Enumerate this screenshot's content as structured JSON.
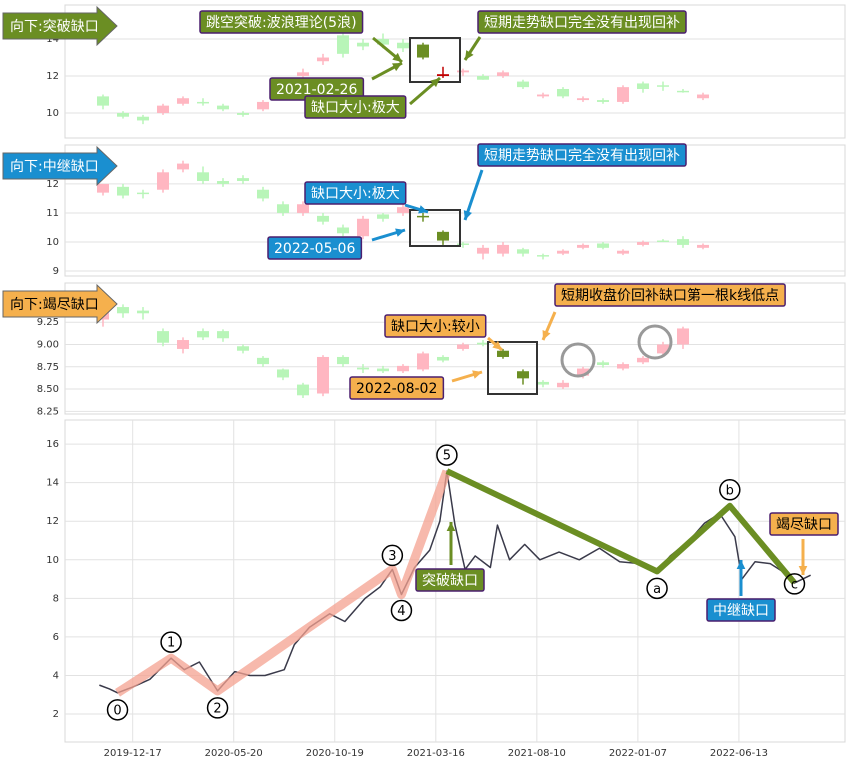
{
  "chart_data": [
    {
      "type": "candlestick",
      "label": "向下:突破缺口",
      "color": "#6b8e23",
      "ylim": [
        8.65,
        15.84
      ],
      "yticks": [
        10,
        12,
        14
      ],
      "grid": true,
      "open": [
        10.9,
        10.0,
        9.8,
        10.0,
        10.5,
        10.6,
        10.4,
        10.0,
        10.2,
        11.0,
        12.0,
        12.8,
        14.2,
        13.8,
        14.0,
        13.8,
        13.7,
        12.1,
        12.2,
        12.0,
        12.0,
        11.7,
        10.9,
        11.3,
        10.7,
        10.7,
        10.6,
        11.6,
        11.5,
        11.2,
        10.8
      ],
      "high": [
        11.0,
        10.1,
        9.9,
        10.5,
        10.9,
        10.8,
        10.5,
        10.1,
        10.7,
        11.2,
        12.4,
        13.2,
        14.5,
        14.0,
        14.3,
        14.0,
        13.8,
        12.5,
        12.4,
        12.1,
        12.3,
        11.8,
        11.1,
        11.4,
        10.9,
        10.8,
        11.5,
        11.7,
        11.7,
        11.3,
        11.1
      ],
      "low": [
        10.2,
        9.7,
        9.4,
        9.9,
        10.4,
        10.4,
        10.1,
        9.8,
        10.1,
        10.8,
        11.9,
        12.6,
        13.0,
        13.4,
        13.5,
        13.3,
        12.9,
        11.9,
        12.0,
        11.8,
        11.9,
        11.3,
        10.8,
        10.8,
        10.6,
        10.5,
        10.5,
        11.1,
        11.2,
        11.1,
        10.7
      ],
      "close": [
        10.4,
        9.8,
        9.6,
        10.4,
        10.8,
        10.6,
        10.2,
        9.9,
        10.6,
        11.1,
        12.2,
        13.0,
        13.2,
        13.6,
        13.7,
        13.5,
        13.0,
        12.0,
        12.3,
        11.8,
        12.2,
        11.4,
        11.0,
        10.9,
        10.8,
        10.6,
        11.4,
        11.3,
        11.5,
        11.2,
        11.0
      ],
      "colors": [
        "#b8f5b8",
        "#b8f5b8",
        "#b8f5b8",
        "#ffb6c1",
        "#ffb6c1",
        "#b8f5b8",
        "#b8f5b8",
        "#b8f5b8",
        "#ffb6c1",
        "#ffb6c1",
        "#ffb6c1",
        "#ffb6c1",
        "#b8f5b8",
        "#b8f5b8",
        "#b8f5b8",
        "#b8f5b8",
        "#6b8e23",
        "#c00000",
        "#ffb6c1",
        "#b8f5b8",
        "#ffb6c1",
        "#b8f5b8",
        "#ffb6c1",
        "#b8f5b8",
        "#ffb6c1",
        "#b8f5b8",
        "#ffb6c1",
        "#b8f5b8",
        "#b8f5b8",
        "#b8f5b8",
        "#ffb6c1"
      ],
      "annotations": [
        "跳空突破:波浪理论(5浪)",
        "短期走势缺口完全没有出现回补",
        "2021-02-26",
        "缺口大小:极大"
      ]
    },
    {
      "type": "candlestick",
      "label": "向下:中继缺口",
      "color": "#1a8fd0",
      "ylim": [
        8.83,
        13.34
      ],
      "yticks": [
        9,
        10,
        11,
        12
      ],
      "grid": true,
      "open": [
        11.7,
        11.9,
        11.7,
        11.8,
        12.5,
        12.4,
        12.1,
        12.2,
        11.8,
        11.3,
        11.0,
        10.9,
        10.5,
        10.2,
        10.95,
        11.0,
        10.9,
        10.35,
        9.95,
        9.6,
        9.6,
        9.75,
        9.55,
        9.6,
        9.8,
        9.95,
        9.6,
        9.9,
        10.05,
        10.1,
        9.8
      ],
      "high": [
        12.0,
        12.0,
        11.8,
        12.5,
        12.8,
        12.6,
        12.2,
        12.3,
        11.9,
        11.4,
        11.4,
        11.0,
        10.6,
        10.9,
        11.0,
        11.3,
        11.0,
        10.4,
        10.0,
        9.9,
        10.0,
        9.8,
        9.6,
        9.75,
        9.95,
        10.0,
        9.75,
        10.05,
        10.1,
        10.2,
        9.95
      ],
      "low": [
        11.6,
        11.5,
        11.5,
        11.7,
        12.4,
        12.0,
        11.9,
        12.0,
        11.4,
        10.9,
        10.9,
        10.6,
        10.2,
        10.1,
        10.7,
        10.9,
        10.7,
        9.9,
        9.8,
        9.4,
        9.5,
        9.5,
        9.4,
        9.55,
        9.75,
        9.75,
        9.55,
        9.85,
        10.0,
        9.8,
        9.75
      ],
      "close": [
        12.0,
        11.6,
        11.65,
        12.4,
        12.7,
        12.1,
        12.0,
        12.1,
        11.5,
        11.0,
        11.3,
        10.7,
        10.3,
        10.8,
        10.8,
        11.2,
        10.85,
        10.05,
        9.9,
        9.8,
        9.9,
        9.6,
        9.5,
        9.7,
        9.9,
        9.8,
        9.7,
        10.0,
        10.02,
        9.9,
        9.9
      ],
      "colors": [
        "#ffb6c1",
        "#b8f5b8",
        "#b8f5b8",
        "#ffb6c1",
        "#ffb6c1",
        "#b8f5b8",
        "#b8f5b8",
        "#b8f5b8",
        "#b8f5b8",
        "#b8f5b8",
        "#ffb6c1",
        "#b8f5b8",
        "#b8f5b8",
        "#ffb6c1",
        "#b8f5b8",
        "#ffb6c1",
        "#6b8e23",
        "#6b8e23",
        "#b8f5b8",
        "#ffb6c1",
        "#ffb6c1",
        "#b8f5b8",
        "#b8f5b8",
        "#ffb6c1",
        "#ffb6c1",
        "#b8f5b8",
        "#ffb6c1",
        "#ffb6c1",
        "#b8f5b8",
        "#b8f5b8",
        "#ffb6c1"
      ],
      "annotations": [
        "短期走势缺口完全没有出现回补",
        "缺口大小:极大",
        "2022-05-06"
      ]
    },
    {
      "type": "candlestick",
      "label": "向下:竭尽缺口",
      "color": "#f5b04d",
      "ylim": [
        8.22,
        9.69
      ],
      "yticks": [
        {
          "value": 8.25,
          "label": "8.25"
        },
        {
          "value": 8.5,
          "label": "8.50"
        },
        {
          "value": 8.75,
          "label": "8.75"
        },
        {
          "value": 9,
          "label": "9.00"
        },
        {
          "value": 9.25,
          "label": "9.25"
        }
      ],
      "grid": true,
      "open": [
        9.28,
        9.42,
        9.38,
        9.15,
        8.95,
        9.15,
        9.15,
        8.98,
        8.85,
        8.72,
        8.55,
        8.45,
        8.86,
        8.74,
        8.73,
        8.7,
        8.72,
        8.86,
        8.95,
        9.02,
        8.93,
        8.7,
        8.58,
        8.52,
        8.65,
        8.8,
        8.73,
        8.8,
        8.9,
        9.0
      ],
      "high": [
        9.42,
        9.45,
        9.42,
        9.18,
        9.08,
        9.18,
        9.17,
        9.0,
        8.87,
        8.73,
        8.57,
        8.88,
        8.88,
        8.78,
        8.76,
        8.78,
        8.92,
        8.88,
        9.02,
        9.05,
        8.95,
        8.72,
        8.6,
        8.6,
        8.75,
        8.82,
        8.8,
        8.87,
        9.03,
        9.2
      ],
      "low": [
        9.2,
        9.3,
        9.28,
        8.98,
        8.9,
        9.05,
        9.03,
        8.9,
        8.75,
        8.6,
        8.4,
        8.42,
        8.75,
        8.68,
        8.68,
        8.68,
        8.7,
        8.8,
        8.93,
        8.98,
        8.84,
        8.55,
        8.52,
        8.5,
        8.62,
        8.74,
        8.71,
        8.78,
        8.88,
        8.95
      ],
      "close": [
        9.38,
        9.35,
        9.35,
        9.02,
        9.05,
        9.08,
        9.07,
        8.93,
        8.78,
        8.63,
        8.43,
        8.86,
        8.78,
        8.72,
        8.7,
        8.76,
        8.9,
        8.82,
        9.0,
        9.0,
        8.86,
        8.62,
        8.55,
        8.57,
        8.73,
        8.77,
        8.78,
        8.85,
        9.0,
        9.18
      ],
      "colors": [
        "#ffb6c1",
        "#b8f5b8",
        "#b8f5b8",
        "#b8f5b8",
        "#ffb6c1",
        "#b8f5b8",
        "#b8f5b8",
        "#b8f5b8",
        "#b8f5b8",
        "#b8f5b8",
        "#b8f5b8",
        "#ffb6c1",
        "#b8f5b8",
        "#b8f5b8",
        "#b8f5b8",
        "#ffb6c1",
        "#ffb6c1",
        "#b8f5b8",
        "#ffb6c1",
        "#b8f5b8",
        "#6b8e23",
        "#6b8e23",
        "#b8f5b8",
        "#ffb6c1",
        "#ffb6c1",
        "#b8f5b8",
        "#ffb6c1",
        "#ffb6c1",
        "#ffb6c1",
        "#ffb6c1"
      ],
      "annotations": [
        "短期收盘价回补缺口第一根k线低点",
        "缺口大小:较小",
        "2022-08-02"
      ]
    },
    {
      "type": "line",
      "xlim": [
        -67,
        705
      ],
      "ylim": [
        0.55,
        17.25
      ],
      "grid": true,
      "xticks": [
        {
          "value": 0,
          "label": "2019-12-17"
        },
        {
          "value": 100,
          "label": "2020-05-20"
        },
        {
          "value": 200,
          "label": "2020-10-19"
        },
        {
          "value": 300,
          "label": "2021-03-16"
        },
        {
          "value": 400,
          "label": "2021-08-10"
        },
        {
          "value": 500,
          "label": "2022-01-07"
        },
        {
          "value": 600,
          "label": "2022-06-13"
        }
      ],
      "yticks": [
        2,
        4,
        6,
        8,
        10,
        12,
        14,
        16
      ],
      "series": [
        {
          "color": "#3a3a4a",
          "x": [
            -33,
            -23,
            -15,
            0,
            17,
            38,
            51,
            66,
            84,
            101,
            116,
            131,
            150,
            160,
            175,
            195,
            210,
            230,
            245,
            257,
            266,
            279,
            294,
            304,
            311,
            319,
            329,
            339,
            354,
            361,
            373,
            388,
            403,
            422,
            442,
            462,
            482,
            502,
            519,
            532,
            551,
            566,
            581,
            596,
            603,
            616,
            631,
            646,
            655,
            671
          ],
          "values": [
            3.5,
            3.3,
            3.1,
            3.4,
            3.8,
            4.9,
            4.3,
            4.7,
            3.2,
            4.2,
            4.0,
            4.0,
            4.3,
            5.6,
            6.5,
            7.2,
            6.8,
            8.0,
            8.6,
            9.5,
            8.2,
            9.6,
            10.5,
            12.0,
            14.6,
            11.8,
            9.5,
            10.2,
            9.6,
            11.8,
            10.0,
            10.8,
            10.0,
            10.4,
            10.0,
            10.6,
            9.9,
            9.8,
            9.4,
            10.2,
            11.0,
            11.9,
            12.4,
            11.2,
            9.0,
            9.9,
            9.8,
            9.3,
            8.8,
            9.2
          ]
        },
        {
          "color": "#f4a190",
          "x": [
            -15,
            38,
            84,
            257,
            266,
            311
          ],
          "values": [
            3.1,
            4.9,
            3.2,
            9.5,
            8.2,
            14.6
          ],
          "labels": [
            "0",
            "1",
            "2",
            "3",
            "4",
            "5"
          ]
        },
        {
          "color": "#6b8e23",
          "x": [
            311,
            519,
            591,
            655
          ],
          "values": [
            14.6,
            9.4,
            12.8,
            8.8
          ],
          "labels": [
            "5",
            "a",
            "b",
            "c"
          ]
        }
      ],
      "annotations": [
        {
          "text": "突破缺口",
          "color": "#6b8e23"
        },
        {
          "text": "中继缺口",
          "color": "#1a8fd0"
        },
        {
          "text": "竭尽缺口",
          "color": "#f5b04d"
        }
      ]
    }
  ]
}
